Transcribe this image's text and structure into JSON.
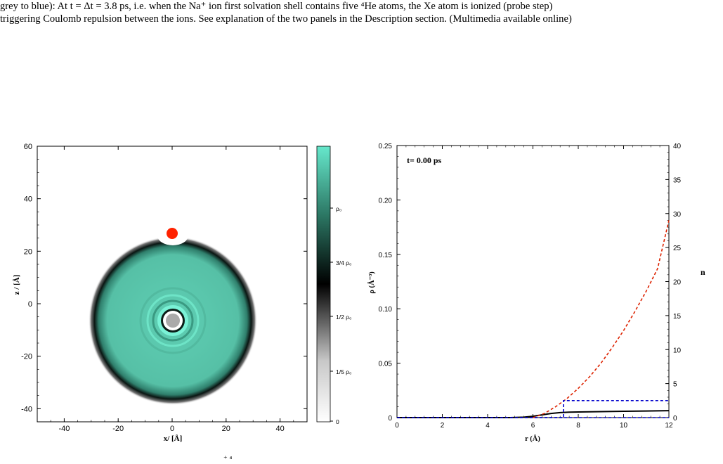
{
  "caption": {
    "line1": "grey to blue): At t = Δt = 3.8 ps, i.e. when the Na⁺ ion first solvation shell contains five ⁴He atoms, the Xe atom is ionized (probe step)",
    "line2": "triggering Coulomb repulsion between the ions. See explanation of the two panels in the Description section. (Multimedia available online)"
  },
  "left_panel": {
    "xlabel": "x/ [Å]",
    "ylabel": "z / [Å]",
    "xticks": [
      "-40",
      "-20",
      "0",
      "20",
      "40"
    ],
    "yticks": [
      "60",
      "40",
      "20",
      "0",
      "-20",
      "-40"
    ],
    "colorbar": {
      "labels": [
        "ρ₀",
        "3/4 ρ₀",
        "1/2 ρ₀",
        "1/5 ρ₀",
        "0"
      ],
      "colors": {
        "max": "#66e8cc",
        "mid": "#2c7764",
        "half": "#000000",
        "fifth": "#c8c8c8",
        "zero": "#ffffff"
      }
    },
    "droplet": {
      "fill": "#5fcfb4",
      "rim": "#111111"
    },
    "xe_ion_color": "#ff2200",
    "na_ion_color": "#aaaaaa"
  },
  "chart_data": {
    "type": "line",
    "title": "t= 0.00 ps",
    "xlabel": "r (Å)",
    "ylabel": "ρ (Å⁻³)",
    "y2label": "n",
    "xlim": [
      0,
      12
    ],
    "ylim": [
      0,
      0.25
    ],
    "y2lim": [
      0,
      40
    ],
    "xticks": [
      "0",
      "2",
      "4",
      "6",
      "8",
      "10",
      "12"
    ],
    "yticks": [
      "0",
      "0.05",
      "0.10",
      "0.15",
      "0.20",
      "0.25"
    ],
    "y2ticks": [
      "0",
      "5",
      "10",
      "15",
      "20",
      "25",
      "30",
      "35",
      "40"
    ],
    "series": [
      {
        "axis": "left",
        "color": "#000000",
        "style": "solid",
        "x": [
          0,
          5,
          5.6,
          6.0,
          6.4,
          6.8,
          7.2,
          7.6,
          8.0,
          9.0,
          10.0,
          11.0,
          12.0
        ],
        "y": [
          0,
          0,
          0.0004,
          0.0012,
          0.0025,
          0.0038,
          0.0046,
          0.005,
          0.0052,
          0.0055,
          0.0058,
          0.0061,
          0.0064
        ]
      },
      {
        "axis": "right",
        "color": "#dd2200",
        "style": "dashed",
        "x": [
          6.0,
          6.5,
          7.0,
          7.5,
          8.0,
          8.5,
          9.0,
          9.5,
          10.0,
          10.5,
          11.0,
          11.5,
          12.0
        ],
        "y": [
          0.0,
          0.6,
          1.6,
          2.8,
          4.3,
          6.0,
          8.0,
          10.3,
          12.8,
          15.6,
          18.6,
          21.9,
          29.0
        ]
      },
      {
        "axis": "right",
        "color": "#0000cc",
        "style": "dashed",
        "x": [
          0,
          7.35,
          7.35,
          12.0
        ],
        "y": [
          0,
          0,
          2.5,
          2.5
        ]
      }
    ],
    "baseline": {
      "axis": "right",
      "color": "#0000cc",
      "style": "dashed",
      "x": [
        0,
        12
      ],
      "y": [
        0,
        0
      ]
    }
  },
  "footer": {
    "text": "⁺ ⁴"
  }
}
